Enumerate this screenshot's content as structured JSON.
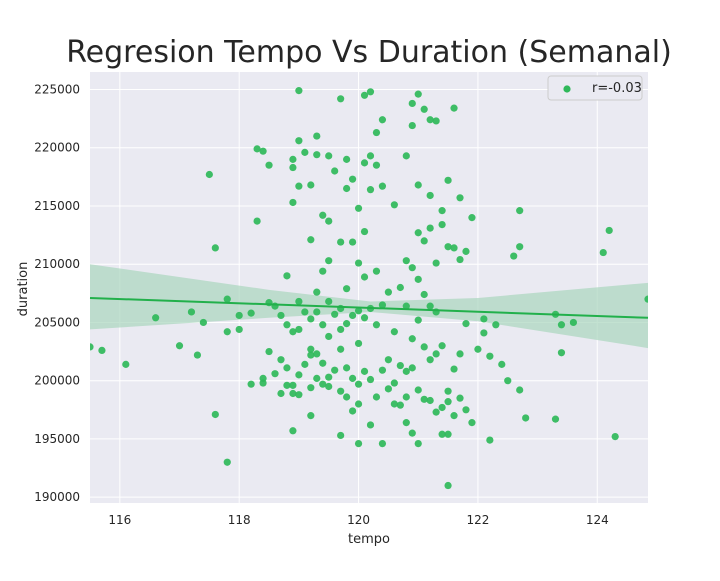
{
  "chart_data": {
    "type": "scatter",
    "title": "Regresion Tempo Vs Duration (Semanal)",
    "xlabel": "tempo",
    "ylabel": "duration",
    "xlim": [
      115.5,
      124.85
    ],
    "ylim": [
      189500,
      226500
    ],
    "xticks": [
      116,
      118,
      120,
      122,
      124
    ],
    "yticks": [
      190000,
      195000,
      200000,
      205000,
      210000,
      215000,
      220000,
      225000
    ],
    "grid": true,
    "legend_position": "top-right",
    "colors": {
      "points": "#2fb85a",
      "line": "#22b04b",
      "band": "#a9d6bd",
      "background": "#eaeaf2",
      "grid": "#ffffff"
    },
    "legend": [
      {
        "label": "r=-0.03",
        "color": "#2fb85a"
      }
    ],
    "regression": {
      "line": [
        [
          115.5,
          207100
        ],
        [
          124.85,
          205400
        ]
      ],
      "ci_upper": [
        [
          115.5,
          210000
        ],
        [
          118.5,
          207800
        ],
        [
          120.2,
          206800
        ],
        [
          122,
          207100
        ],
        [
          124.85,
          208400
        ]
      ],
      "ci_lower": [
        [
          115.5,
          204400
        ],
        [
          118.5,
          205400
        ],
        [
          120.2,
          205900
        ],
        [
          122,
          205100
        ],
        [
          124.85,
          202800
        ]
      ]
    },
    "series": [
      {
        "name": "r=-0.03",
        "points": [
          [
            115.5,
            202900
          ],
          [
            115.7,
            202600
          ],
          [
            116.1,
            201400
          ],
          [
            116.6,
            205400
          ],
          [
            117.0,
            203000
          ],
          [
            117.2,
            205900
          ],
          [
            117.3,
            202200
          ],
          [
            117.4,
            205000
          ],
          [
            117.5,
            217700
          ],
          [
            117.6,
            211400
          ],
          [
            117.6,
            197100
          ],
          [
            117.8,
            193000
          ],
          [
            117.8,
            204200
          ],
          [
            117.8,
            207000
          ],
          [
            118.0,
            205600
          ],
          [
            118.0,
            204400
          ],
          [
            118.2,
            199700
          ],
          [
            118.2,
            205800
          ],
          [
            118.3,
            219900
          ],
          [
            118.3,
            213700
          ],
          [
            118.4,
            219700
          ],
          [
            118.4,
            200200
          ],
          [
            118.4,
            199800
          ],
          [
            118.5,
            218500
          ],
          [
            118.5,
            206700
          ],
          [
            118.5,
            202500
          ],
          [
            118.6,
            206400
          ],
          [
            118.6,
            200600
          ],
          [
            118.7,
            205600
          ],
          [
            118.7,
            201800
          ],
          [
            118.7,
            198900
          ],
          [
            118.8,
            209000
          ],
          [
            118.8,
            204800
          ],
          [
            118.8,
            201100
          ],
          [
            118.8,
            199600
          ],
          [
            118.9,
            219000
          ],
          [
            118.9,
            218300
          ],
          [
            118.9,
            215300
          ],
          [
            118.9,
            204200
          ],
          [
            118.9,
            199600
          ],
          [
            118.9,
            198900
          ],
          [
            118.9,
            195700
          ],
          [
            119.0,
            224900
          ],
          [
            119.0,
            220600
          ],
          [
            119.0,
            216700
          ],
          [
            119.0,
            206800
          ],
          [
            119.0,
            204400
          ],
          [
            119.0,
            200500
          ],
          [
            119.0,
            198800
          ],
          [
            119.1,
            219600
          ],
          [
            119.1,
            205900
          ],
          [
            119.1,
            201400
          ],
          [
            119.2,
            216800
          ],
          [
            119.2,
            212100
          ],
          [
            119.2,
            205300
          ],
          [
            119.2,
            202700
          ],
          [
            119.2,
            202200
          ],
          [
            119.2,
            199400
          ],
          [
            119.2,
            197000
          ],
          [
            119.3,
            221000
          ],
          [
            119.3,
            219400
          ],
          [
            119.3,
            207600
          ],
          [
            119.3,
            205900
          ],
          [
            119.3,
            202300
          ],
          [
            119.3,
            200200
          ],
          [
            119.4,
            214200
          ],
          [
            119.4,
            209400
          ],
          [
            119.4,
            204800
          ],
          [
            119.4,
            201500
          ],
          [
            119.4,
            199700
          ],
          [
            119.5,
            219300
          ],
          [
            119.5,
            213700
          ],
          [
            119.5,
            210300
          ],
          [
            119.5,
            206800
          ],
          [
            119.5,
            203800
          ],
          [
            119.5,
            200300
          ],
          [
            119.5,
            199500
          ],
          [
            119.6,
            218000
          ],
          [
            119.6,
            205700
          ],
          [
            119.6,
            200900
          ],
          [
            119.7,
            224200
          ],
          [
            119.7,
            211900
          ],
          [
            119.7,
            206200
          ],
          [
            119.7,
            204400
          ],
          [
            119.7,
            202700
          ],
          [
            119.7,
            199100
          ],
          [
            119.7,
            195300
          ],
          [
            119.8,
            219000
          ],
          [
            119.8,
            216500
          ],
          [
            119.8,
            207900
          ],
          [
            119.8,
            204900
          ],
          [
            119.8,
            201100
          ],
          [
            119.8,
            198600
          ],
          [
            119.9,
            217300
          ],
          [
            119.9,
            211900
          ],
          [
            119.9,
            205600
          ],
          [
            119.9,
            200200
          ],
          [
            119.9,
            197400
          ],
          [
            120.0,
            214800
          ],
          [
            120.0,
            210100
          ],
          [
            120.0,
            206000
          ],
          [
            120.0,
            203200
          ],
          [
            120.0,
            199700
          ],
          [
            120.0,
            198000
          ],
          [
            120.0,
            194600
          ],
          [
            120.1,
            224500
          ],
          [
            120.1,
            218700
          ],
          [
            120.1,
            212800
          ],
          [
            120.1,
            208900
          ],
          [
            120.1,
            205400
          ],
          [
            120.1,
            200800
          ],
          [
            120.2,
            224800
          ],
          [
            120.2,
            219300
          ],
          [
            120.2,
            216400
          ],
          [
            120.2,
            206200
          ],
          [
            120.2,
            200100
          ],
          [
            120.2,
            196200
          ],
          [
            120.3,
            221300
          ],
          [
            120.3,
            218500
          ],
          [
            120.3,
            209400
          ],
          [
            120.3,
            204800
          ],
          [
            120.3,
            198600
          ],
          [
            120.4,
            222400
          ],
          [
            120.4,
            216700
          ],
          [
            120.4,
            206500
          ],
          [
            120.4,
            200900
          ],
          [
            120.4,
            194600
          ],
          [
            120.5,
            207600
          ],
          [
            120.5,
            201800
          ],
          [
            120.5,
            199300
          ],
          [
            120.6,
            215100
          ],
          [
            120.6,
            204200
          ],
          [
            120.6,
            199800
          ],
          [
            120.6,
            198000
          ],
          [
            120.7,
            208000
          ],
          [
            120.7,
            201300
          ],
          [
            120.7,
            197900
          ],
          [
            120.8,
            219300
          ],
          [
            120.8,
            210300
          ],
          [
            120.8,
            206400
          ],
          [
            120.8,
            200800
          ],
          [
            120.8,
            198600
          ],
          [
            120.8,
            196400
          ],
          [
            120.9,
            223800
          ],
          [
            120.9,
            221900
          ],
          [
            120.9,
            209700
          ],
          [
            120.9,
            203600
          ],
          [
            120.9,
            201100
          ],
          [
            120.9,
            195500
          ],
          [
            121.0,
            224600
          ],
          [
            121.0,
            216800
          ],
          [
            121.0,
            212700
          ],
          [
            121.0,
            208700
          ],
          [
            121.0,
            205200
          ],
          [
            121.0,
            199200
          ],
          [
            121.0,
            194600
          ],
          [
            121.1,
            223300
          ],
          [
            121.1,
            212000
          ],
          [
            121.1,
            207400
          ],
          [
            121.1,
            202900
          ],
          [
            121.1,
            198400
          ],
          [
            121.2,
            222400
          ],
          [
            121.2,
            215900
          ],
          [
            121.2,
            213100
          ],
          [
            121.2,
            206400
          ],
          [
            121.2,
            201800
          ],
          [
            121.2,
            198300
          ],
          [
            121.3,
            222300
          ],
          [
            121.3,
            210100
          ],
          [
            121.3,
            205900
          ],
          [
            121.3,
            202300
          ],
          [
            121.3,
            197300
          ],
          [
            121.4,
            214600
          ],
          [
            121.4,
            213400
          ],
          [
            121.4,
            203000
          ],
          [
            121.4,
            197700
          ],
          [
            121.4,
            195400
          ],
          [
            121.5,
            217200
          ],
          [
            121.5,
            211500
          ],
          [
            121.5,
            199100
          ],
          [
            121.5,
            198200
          ],
          [
            121.5,
            195400
          ],
          [
            121.5,
            191000
          ],
          [
            121.6,
            223400
          ],
          [
            121.6,
            211400
          ],
          [
            121.6,
            201000
          ],
          [
            121.6,
            197000
          ],
          [
            121.7,
            215700
          ],
          [
            121.7,
            210400
          ],
          [
            121.7,
            202300
          ],
          [
            121.7,
            198500
          ],
          [
            121.8,
            211100
          ],
          [
            121.8,
            204900
          ],
          [
            121.8,
            197500
          ],
          [
            121.9,
            214000
          ],
          [
            121.9,
            196400
          ],
          [
            122.0,
            202700
          ],
          [
            122.1,
            205300
          ],
          [
            122.1,
            204100
          ],
          [
            122.2,
            202100
          ],
          [
            122.2,
            194900
          ],
          [
            122.3,
            204800
          ],
          [
            122.4,
            201400
          ],
          [
            122.5,
            200000
          ],
          [
            122.6,
            210700
          ],
          [
            122.7,
            214600
          ],
          [
            122.7,
            211500
          ],
          [
            122.7,
            199200
          ],
          [
            122.8,
            196800
          ],
          [
            123.3,
            205700
          ],
          [
            123.3,
            196700
          ],
          [
            123.4,
            202400
          ],
          [
            123.4,
            204800
          ],
          [
            123.6,
            205000
          ],
          [
            124.1,
            211000
          ],
          [
            124.2,
            212900
          ],
          [
            124.3,
            195200
          ],
          [
            124.85,
            207000
          ]
        ]
      }
    ]
  }
}
